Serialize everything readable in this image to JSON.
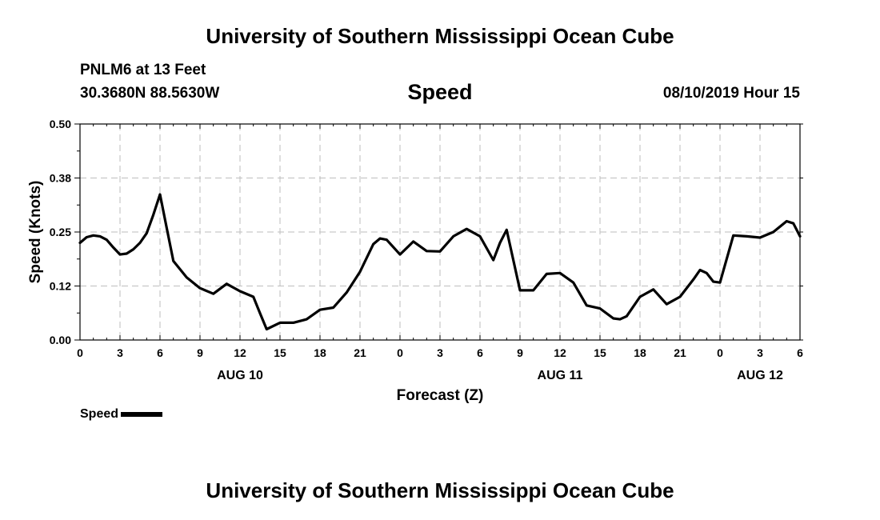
{
  "header": {
    "title": "University of Southern Mississippi Ocean Cube",
    "station": "PNLM6 at 13 Feet",
    "coordinates": "30.3680N 88.5630W",
    "datetime": "08/10/2019 Hour 15"
  },
  "footer": {
    "title": "University of Southern Mississippi Ocean Cube"
  },
  "legend": {
    "label": "Speed",
    "color": "#000000"
  },
  "chart_data": {
    "type": "line",
    "title": "Speed",
    "xlabel": "Forecast (Z)",
    "ylabel": "Speed (Knots)",
    "xlim": [
      0,
      54
    ],
    "ylim": [
      0,
      0.5
    ],
    "grid": true,
    "y_ticks": [
      "0.00",
      "0.12",
      "0.25",
      "0.38",
      "0.50"
    ],
    "x_tick_labels": [
      "0",
      "3",
      "6",
      "9",
      "12",
      "15",
      "18",
      "21",
      "0",
      "3",
      "6",
      "9",
      "12",
      "15",
      "18",
      "21",
      "0",
      "3",
      "6"
    ],
    "date_labels": [
      {
        "label": "AUG 10",
        "x": 12
      },
      {
        "label": "AUG 11",
        "x": 36
      },
      {
        "label": "AUG 12",
        "x": 51
      }
    ],
    "series": [
      {
        "name": "Speed",
        "color": "#000000",
        "x": [
          0,
          0.5,
          1,
          1.5,
          2,
          2.5,
          3,
          3.5,
          4,
          4.5,
          5,
          5.5,
          6,
          6.5,
          7,
          8,
          9,
          10,
          11,
          12,
          13,
          13.5,
          14,
          15,
          16,
          17,
          18,
          19,
          20,
          21,
          22,
          22.5,
          23,
          24,
          25,
          26,
          27,
          28,
          29,
          30,
          31,
          31.5,
          32,
          33,
          34,
          35,
          36,
          37,
          38,
          39,
          40,
          40.5,
          41,
          42,
          43,
          44,
          45,
          46,
          46.5,
          47,
          47.5,
          48,
          49,
          50,
          51,
          52,
          53,
          53.5,
          54
        ],
        "y": [
          0.225,
          0.238,
          0.242,
          0.24,
          0.232,
          0.214,
          0.198,
          0.2,
          0.21,
          0.225,
          0.247,
          0.29,
          0.337,
          0.26,
          0.183,
          0.145,
          0.12,
          0.107,
          0.13,
          0.113,
          0.1,
          0.062,
          0.025,
          0.04,
          0.04,
          0.048,
          0.07,
          0.075,
          0.11,
          0.158,
          0.222,
          0.235,
          0.232,
          0.198,
          0.228,
          0.206,
          0.205,
          0.24,
          0.257,
          0.24,
          0.185,
          0.225,
          0.255,
          0.115,
          0.115,
          0.153,
          0.155,
          0.133,
          0.08,
          0.073,
          0.05,
          0.048,
          0.055,
          0.1,
          0.117,
          0.083,
          0.1,
          0.14,
          0.162,
          0.155,
          0.135,
          0.133,
          0.242,
          0.24,
          0.237,
          0.25,
          0.275,
          0.27,
          0.24
        ]
      }
    ]
  }
}
